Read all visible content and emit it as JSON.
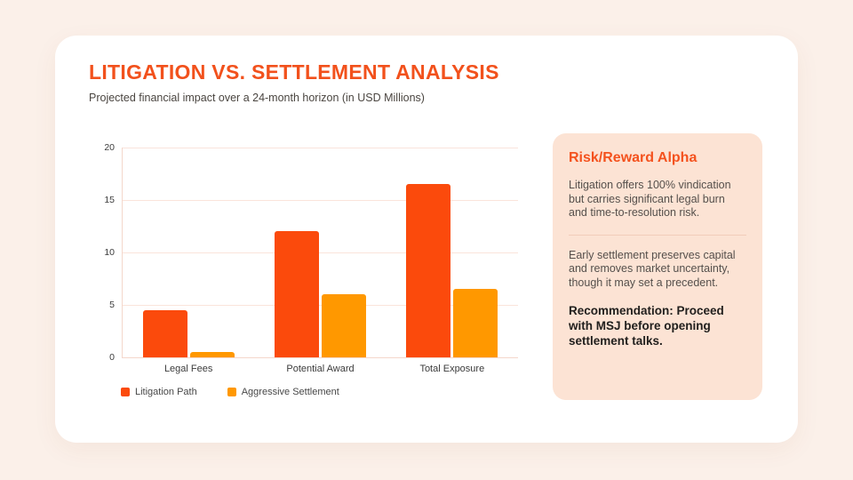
{
  "page": {
    "background_color": "#FBF0E9",
    "card_color": "#FFFFFF"
  },
  "header": {
    "title": "LITIGATION VS. SETTLEMENT ANALYSIS",
    "title_color": "#F2511C",
    "subtitle": "Projected financial impact over a 24-month horizon (in USD Millions)"
  },
  "chart_data": {
    "type": "bar",
    "title": "",
    "xlabel": "",
    "ylabel": "",
    "categories": [
      "Legal Fees",
      "Potential Award",
      "Total Exposure"
    ],
    "series": [
      {
        "name": "Litigation Path",
        "color": "#FB4A0C",
        "values": [
          4.5,
          12,
          16.5
        ]
      },
      {
        "name": "Aggressive Settlement",
        "color": "#FF9800",
        "values": [
          0.5,
          6,
          6.5
        ]
      }
    ],
    "ylim": [
      0,
      20
    ],
    "yticks": [
      0,
      5,
      10,
      15,
      20
    ],
    "grid": true,
    "gridline_color": "#FAE4DB",
    "axis_color": "#F4D7CB",
    "legend_position": "bottom"
  },
  "panel": {
    "title": "Risk/Reward Alpha",
    "title_color": "#F4521E",
    "background_color": "#FCE3D4",
    "paragraph_1": "Litigation offers 100% vindication but carries significant legal burn and time-to-resolution risk.",
    "paragraph_2": "Early settlement preserves capital and removes market uncertainty, though it may set a precedent.",
    "recommendation": "Recommendation: Proceed with MSJ before opening settlement talks."
  }
}
